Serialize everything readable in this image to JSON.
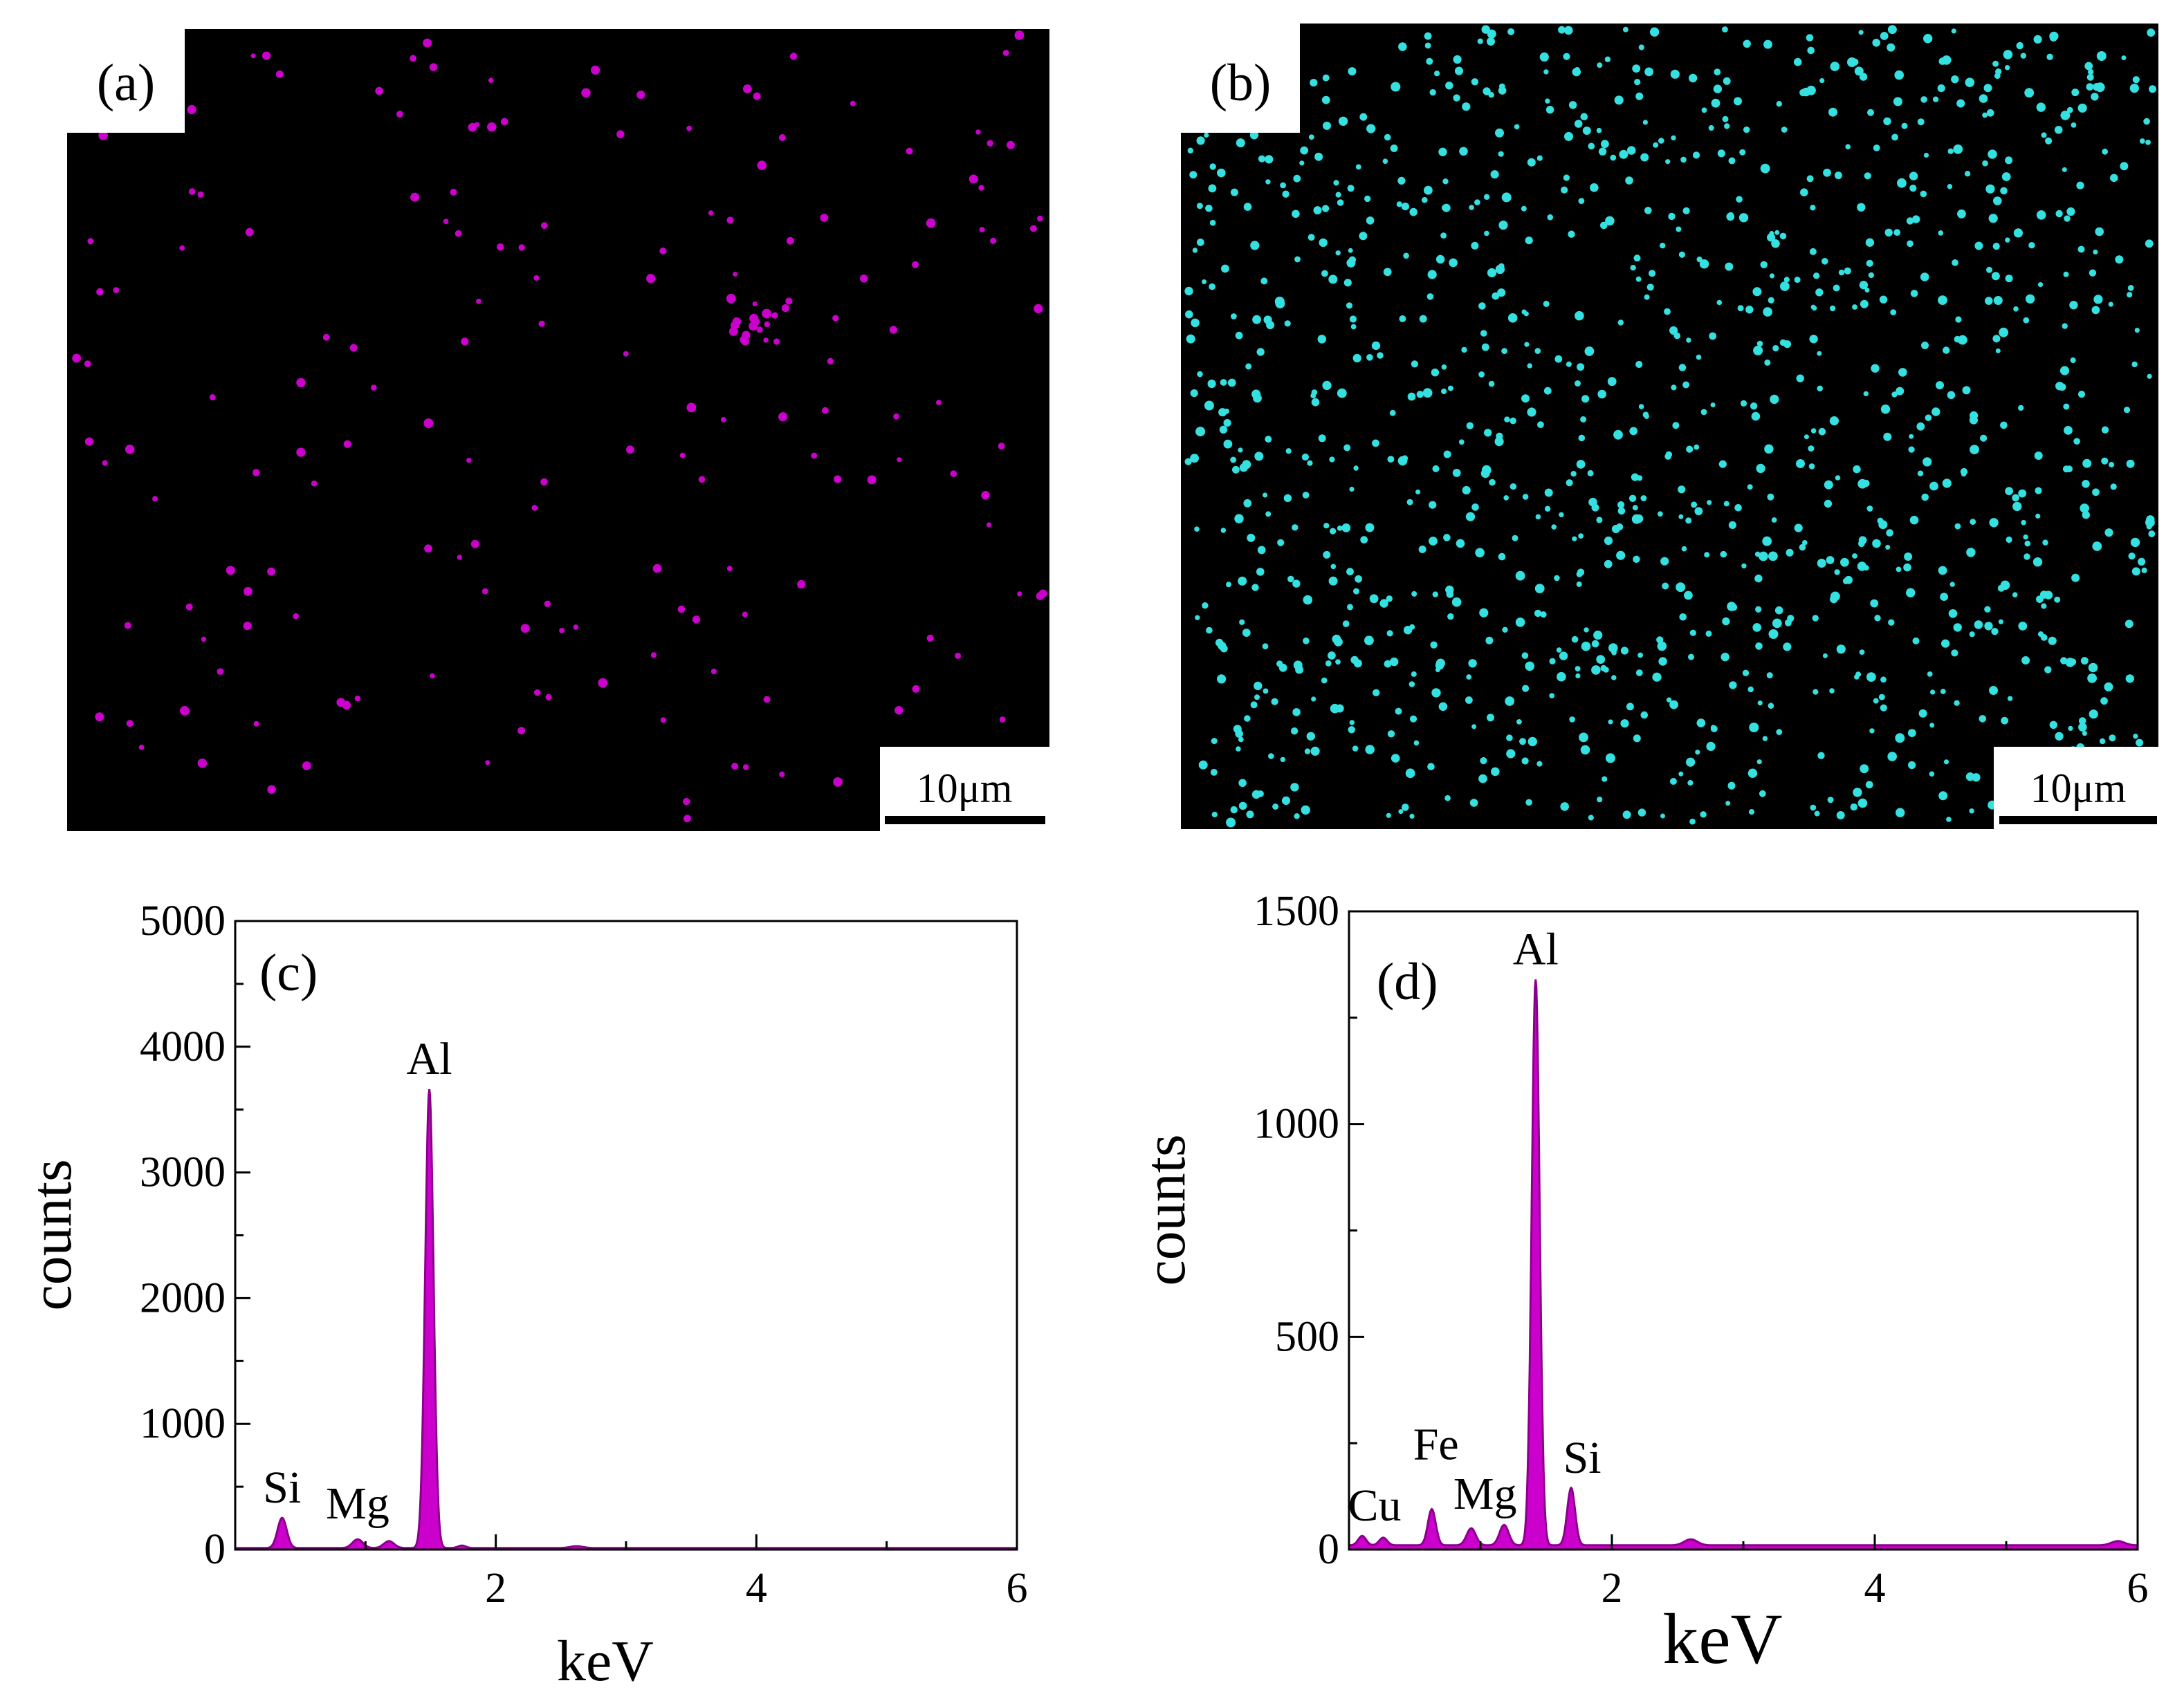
{
  "colors": {
    "magenta": "#cc00cc",
    "cyan": "#34e0e0",
    "background": "#000000",
    "spectrum_fill": "#cc00cc"
  },
  "maps": [
    {
      "label": "(a)",
      "element_color": "#cc00cc",
      "scale_bar": "10μm",
      "dot_count": 190,
      "seed": 7,
      "cluster": true
    },
    {
      "label": "(b)",
      "element_color": "#34e0e0",
      "scale_bar": "10μm",
      "dot_count": 1150,
      "seed": 23,
      "cluster": false
    }
  ],
  "chart_data": [
    {
      "type": "area",
      "panel_label": "(c)",
      "xlabel": "keV",
      "ylabel": "counts",
      "xlim": [
        0.0,
        6.0
      ],
      "ylim": [
        0,
        5000
      ],
      "xticks": [
        "2",
        "4",
        "6"
      ],
      "xtick_values": [
        2,
        4,
        6
      ],
      "yticks": [
        "0",
        "1000",
        "2000",
        "3000",
        "4000",
        "5000"
      ],
      "ytick_values": [
        0,
        1000,
        2000,
        3000,
        4000,
        5000
      ],
      "baseline": 12,
      "peaks": [
        {
          "label": "Si",
          "x": 0.36,
          "y": 240,
          "width": 0.035
        },
        {
          "label": "Mg",
          "x": 0.94,
          "y": 70,
          "width": 0.04
        },
        {
          "label": "",
          "x": 1.18,
          "y": 55,
          "width": 0.04
        },
        {
          "label": "Al",
          "x": 1.49,
          "y": 3650,
          "width": 0.032
        },
        {
          "label": "",
          "x": 1.74,
          "y": 20,
          "width": 0.03
        },
        {
          "label": "",
          "x": 2.62,
          "y": 15,
          "width": 0.05
        }
      ]
    },
    {
      "type": "area",
      "panel_label": "(d)",
      "xlabel": "keV",
      "ylabel": "counts",
      "xlim": [
        0.0,
        6.0
      ],
      "ylim": [
        0,
        1500
      ],
      "xticks": [
        "2",
        "4",
        "6"
      ],
      "xtick_values": [
        2,
        4,
        6
      ],
      "yticks": [
        "0",
        "500",
        "1000",
        "1500"
      ],
      "ytick_values": [
        0,
        500,
        1000,
        1500
      ],
      "baseline": 10,
      "peaks": [
        {
          "label": "Cu",
          "x": 0.1,
          "y": 22,
          "width": 0.03
        },
        {
          "label": "",
          "x": 0.26,
          "y": 18,
          "width": 0.03
        },
        {
          "label": "Fe",
          "x": 0.63,
          "y": 85,
          "width": 0.03
        },
        {
          "label": "Mg",
          "x": 0.93,
          "y": 40,
          "width": 0.035
        },
        {
          "label": "",
          "x": 1.18,
          "y": 48,
          "width": 0.035
        },
        {
          "label": "Al",
          "x": 1.42,
          "y": 1330,
          "width": 0.03
        },
        {
          "label": "Si",
          "x": 1.69,
          "y": 135,
          "width": 0.03
        },
        {
          "label": "",
          "x": 2.6,
          "y": 14,
          "width": 0.05
        },
        {
          "label": "",
          "x": 5.85,
          "y": 10,
          "width": 0.05
        }
      ]
    }
  ]
}
